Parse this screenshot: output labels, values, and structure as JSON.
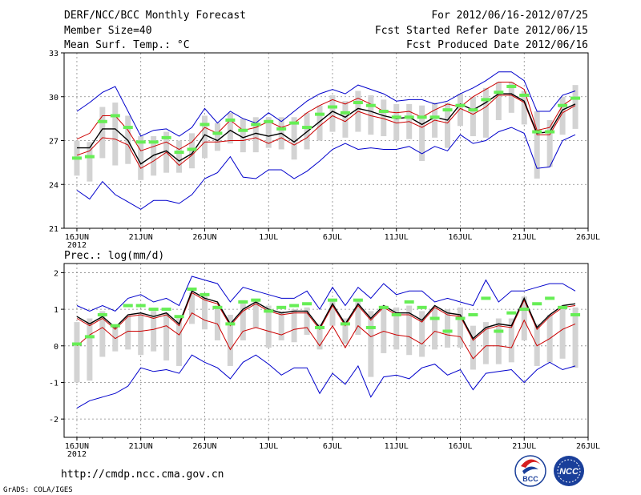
{
  "header": {
    "title": "DERF/NCC/BCC Monthly Forecast",
    "member_size": "Member Size=40",
    "variable": "Mean Surf. Temp.: °C",
    "period": "For 2012/06/16-2012/07/25",
    "started": "Fcst Started Refer Date 2012/06/15",
    "produced": "Fcst Produced Date 2012/06/16"
  },
  "precip_label": "Prec.: log(mm/d)",
  "footer": {
    "url": "http://cmdp.ncc.cma.gov.cn",
    "credit": "GrADS: COLA/IGES",
    "logo_bcc": "BCC",
    "logo_ncc": "NCC"
  },
  "colors": {
    "envelope": "#0000cc",
    "spread": "#cc0000",
    "mean": "#000000",
    "box": "#d3d3d3",
    "marker": "#66ee55",
    "grid": "#888888"
  },
  "chart_data": [
    {
      "type": "line",
      "title": "Mean Surf. Temp.: °C",
      "x_ticks": [
        "16JUN",
        "21JUN",
        "26JUN",
        "1JUL",
        "6JUL",
        "11JUL",
        "16JUL",
        "21JUL",
        "26JUL"
      ],
      "x_subtitle": "2012",
      "y_ticks": [
        21,
        24,
        27,
        30,
        33
      ],
      "ylim": [
        21,
        33
      ],
      "days": 40,
      "series": [
        {
          "name": "max",
          "values": [
            29.0,
            29.6,
            30.3,
            30.7,
            29.0,
            27.3,
            27.7,
            27.8,
            27.3,
            27.9,
            29.2,
            28.2,
            29.0,
            28.5,
            28.2,
            28.9,
            28.3,
            29.0,
            29.7,
            30.2,
            30.5,
            30.2,
            30.8,
            30.5,
            30.2,
            29.7,
            29.8,
            29.8,
            29.5,
            29.7,
            30.2,
            30.6,
            31.1,
            31.7,
            31.7,
            31.1,
            29.0,
            29.0,
            30.1,
            30.4
          ]
        },
        {
          "name": "upper",
          "values": [
            27.1,
            27.5,
            28.7,
            28.7,
            27.7,
            26.3,
            26.6,
            26.9,
            26.4,
            26.9,
            27.9,
            27.5,
            28.4,
            27.7,
            27.9,
            28.3,
            27.9,
            28.2,
            28.9,
            29.4,
            29.8,
            29.5,
            29.9,
            29.5,
            29.0,
            28.9,
            29.0,
            28.6,
            29.1,
            29.5,
            29.3,
            30.0,
            30.5,
            31.0,
            31.0,
            30.5,
            27.7,
            27.9,
            29.4,
            30.0
          ]
        },
        {
          "name": "mean",
          "values": [
            26.5,
            26.5,
            27.8,
            27.8,
            27.0,
            25.4,
            26.0,
            26.3,
            25.6,
            26.1,
            27.4,
            27.0,
            27.7,
            27.2,
            27.5,
            27.3,
            27.5,
            26.9,
            27.6,
            28.3,
            29.0,
            28.6,
            29.2,
            29.0,
            28.7,
            28.5,
            28.6,
            28.1,
            28.6,
            28.4,
            29.5,
            29.1,
            29.6,
            30.2,
            30.2,
            29.7,
            27.5,
            27.6,
            29.1,
            29.5
          ]
        },
        {
          "name": "lower",
          "values": [
            26.0,
            26.3,
            27.2,
            27.1,
            26.7,
            25.1,
            25.6,
            26.2,
            25.3,
            26.0,
            26.9,
            26.9,
            27.0,
            27.0,
            27.2,
            26.8,
            27.2,
            26.7,
            27.2,
            28.0,
            28.7,
            28.3,
            29.0,
            28.7,
            28.5,
            28.2,
            28.3,
            27.9,
            28.4,
            28.2,
            29.2,
            28.8,
            29.3,
            30.1,
            30.1,
            29.6,
            27.4,
            27.4,
            28.9,
            29.4
          ]
        },
        {
          "name": "min",
          "values": [
            23.6,
            23.0,
            24.2,
            23.3,
            22.8,
            22.3,
            22.9,
            22.9,
            22.7,
            23.3,
            24.4,
            24.8,
            25.9,
            24.5,
            24.4,
            25.0,
            25.0,
            24.4,
            24.9,
            25.6,
            26.4,
            26.8,
            26.4,
            26.5,
            26.4,
            26.4,
            26.6,
            26.1,
            26.6,
            26.3,
            27.4,
            26.8,
            27.0,
            27.6,
            27.9,
            27.5,
            25.1,
            25.2,
            27.0,
            27.4
          ]
        },
        {
          "name": "obs_marker",
          "values": [
            25.8,
            25.9,
            28.3,
            28.7,
            27.9,
            26.9,
            26.9,
            27.2,
            26.2,
            26.4,
            28.1,
            27.5,
            28.4,
            27.7,
            28.1,
            28.3,
            27.8,
            28.2,
            27.9,
            28.8,
            29.3,
            28.9,
            29.6,
            29.4,
            29.0,
            28.6,
            28.6,
            28.6,
            28.6,
            29.1,
            29.4,
            29.1,
            29.8,
            30.3,
            30.7,
            30.1,
            27.6,
            27.6,
            29.4,
            29.9
          ]
        },
        {
          "name": "box_top",
          "values": [
            27.0,
            26.9,
            29.3,
            29.6,
            28.7,
            27.3,
            27.3,
            27.6,
            27.0,
            27.5,
            28.7,
            28.2,
            28.9,
            28.5,
            28.6,
            28.6,
            28.6,
            28.6,
            28.9,
            29.4,
            30.1,
            29.7,
            30.4,
            30.1,
            29.8,
            29.5,
            29.5,
            29.4,
            29.6,
            29.6,
            30.2,
            30.0,
            30.6,
            31.0,
            31.0,
            30.4,
            29.0,
            28.4,
            30.0,
            30.8
          ]
        },
        {
          "name": "box_bottom",
          "values": [
            24.6,
            24.2,
            25.8,
            25.3,
            25.4,
            24.3,
            24.6,
            24.8,
            24.8,
            25.1,
            25.8,
            26.3,
            26.8,
            26.2,
            26.2,
            26.5,
            26.4,
            25.7,
            26.4,
            27.0,
            27.6,
            27.2,
            27.6,
            27.4,
            27.3,
            27.0,
            27.1,
            25.6,
            27.2,
            26.5,
            28.0,
            27.3,
            27.2,
            28.4,
            28.9,
            28.1,
            24.4,
            25.2,
            27.4,
            27.8
          ]
        }
      ]
    },
    {
      "type": "line",
      "title": "Prec.: log(mm/d)",
      "x_ticks": [
        "16JUN",
        "21JUN",
        "26JUN",
        "1JUL",
        "6JUL",
        "11JUL",
        "16JUL",
        "21JUL",
        "26JUL"
      ],
      "x_subtitle": "2012",
      "y_ticks": [
        -2,
        -1,
        0,
        1,
        2
      ],
      "ylim": [
        -2.5,
        2.25
      ],
      "days": 40,
      "series": [
        {
          "name": "max",
          "values": [
            1.1,
            0.95,
            1.1,
            0.95,
            1.3,
            1.4,
            1.2,
            1.3,
            1.1,
            1.9,
            1.8,
            1.7,
            1.2,
            1.6,
            1.5,
            1.4,
            1.3,
            1.3,
            1.5,
            1.0,
            1.6,
            1.1,
            1.6,
            1.3,
            1.7,
            1.4,
            1.5,
            1.5,
            1.2,
            1.3,
            1.2,
            1.1,
            1.8,
            1.2,
            1.5,
            1.5,
            1.6,
            1.7,
            1.7,
            1.5
          ]
        },
        {
          "name": "mean",
          "values": [
            0.8,
            0.6,
            0.8,
            0.5,
            0.85,
            0.9,
            0.8,
            0.9,
            0.6,
            1.5,
            1.3,
            1.2,
            0.6,
            1.0,
            1.2,
            1.0,
            0.9,
            0.95,
            0.95,
            0.5,
            1.15,
            0.6,
            1.15,
            0.75,
            1.1,
            0.9,
            0.9,
            0.7,
            1.1,
            0.9,
            0.85,
            0.2,
            0.5,
            0.6,
            0.55,
            1.3,
            0.5,
            0.85,
            1.1,
            1.15
          ]
        },
        {
          "name": "upper",
          "values": [
            0.75,
            0.55,
            0.75,
            0.45,
            0.8,
            0.85,
            0.75,
            0.85,
            0.55,
            1.45,
            1.25,
            1.15,
            0.55,
            0.95,
            1.15,
            0.95,
            0.85,
            0.9,
            0.9,
            0.45,
            1.1,
            0.55,
            1.1,
            0.7,
            1.05,
            0.85,
            0.85,
            0.65,
            1.05,
            0.85,
            0.8,
            0.15,
            0.45,
            0.55,
            0.5,
            1.25,
            0.45,
            0.8,
            1.05,
            1.1
          ]
        },
        {
          "name": "lower",
          "values": [
            0.0,
            0.3,
            0.5,
            0.2,
            0.4,
            0.4,
            0.45,
            0.55,
            0.3,
            0.9,
            0.7,
            0.6,
            -0.1,
            0.4,
            0.5,
            0.4,
            0.3,
            0.45,
            0.5,
            0.0,
            0.55,
            -0.05,
            0.55,
            0.25,
            0.4,
            0.3,
            0.25,
            0.05,
            0.4,
            0.3,
            0.25,
            -0.35,
            0.0,
            0.0,
            -0.05,
            0.7,
            0.0,
            0.2,
            0.45,
            0.6
          ]
        },
        {
          "name": "min",
          "values": [
            -1.7,
            -1.5,
            -1.4,
            -1.3,
            -1.1,
            -0.6,
            -0.7,
            -0.65,
            -0.75,
            -0.25,
            -0.45,
            -0.6,
            -0.9,
            -0.45,
            -0.25,
            -0.5,
            -0.8,
            -0.6,
            -0.6,
            -1.3,
            -0.75,
            -1.05,
            -0.55,
            -1.4,
            -0.85,
            -0.8,
            -0.9,
            -0.6,
            -0.5,
            -0.8,
            -0.65,
            -1.2,
            -0.75,
            -0.7,
            -0.65,
            -1.0,
            -0.65,
            -0.45,
            -0.65,
            -0.55
          ]
        },
        {
          "name": "obs_marker",
          "values": [
            0.05,
            0.25,
            0.85,
            0.55,
            1.1,
            1.1,
            1.0,
            1.0,
            0.8,
            1.55,
            1.4,
            1.05,
            0.6,
            1.2,
            1.25,
            0.95,
            1.05,
            1.1,
            1.15,
            0.5,
            1.25,
            0.6,
            1.25,
            0.5,
            1.05,
            0.85,
            1.2,
            1.05,
            0.75,
            0.4,
            0.75,
            0.85,
            1.3,
            0.4,
            0.9,
            1.0,
            1.15,
            1.3,
            1.05,
            0.85
          ]
        },
        {
          "name": "box_top",
          "values": [
            0.65,
            0.75,
            0.95,
            0.55,
            0.8,
            0.9,
            0.95,
            0.9,
            0.75,
            1.45,
            1.35,
            1.1,
            0.85,
            1.25,
            1.25,
            1.1,
            0.95,
            1.0,
            1.05,
            0.6,
            1.25,
            0.75,
            1.25,
            0.95,
            1.1,
            1.05,
            1.1,
            0.95,
            1.05,
            1.0,
            1.05,
            0.55,
            0.65,
            0.75,
            0.75,
            1.35,
            0.6,
            0.85,
            1.05,
            1.05
          ]
        },
        {
          "name": "box_bottom",
          "values": [
            -1.0,
            -0.95,
            -0.3,
            -0.15,
            -0.1,
            -0.25,
            -0.15,
            -0.4,
            -0.55,
            0.6,
            0.45,
            0.15,
            -0.55,
            0.15,
            0.5,
            -0.05,
            0.15,
            0.1,
            0.3,
            -0.1,
            0.55,
            0.05,
            0.3,
            -0.85,
            -0.2,
            -0.1,
            -0.25,
            -0.3,
            -0.1,
            -0.05,
            -0.05,
            -0.65,
            -0.5,
            -0.5,
            -0.45,
            0.15,
            -0.55,
            -0.45,
            -0.35,
            -0.6
          ]
        }
      ]
    }
  ]
}
